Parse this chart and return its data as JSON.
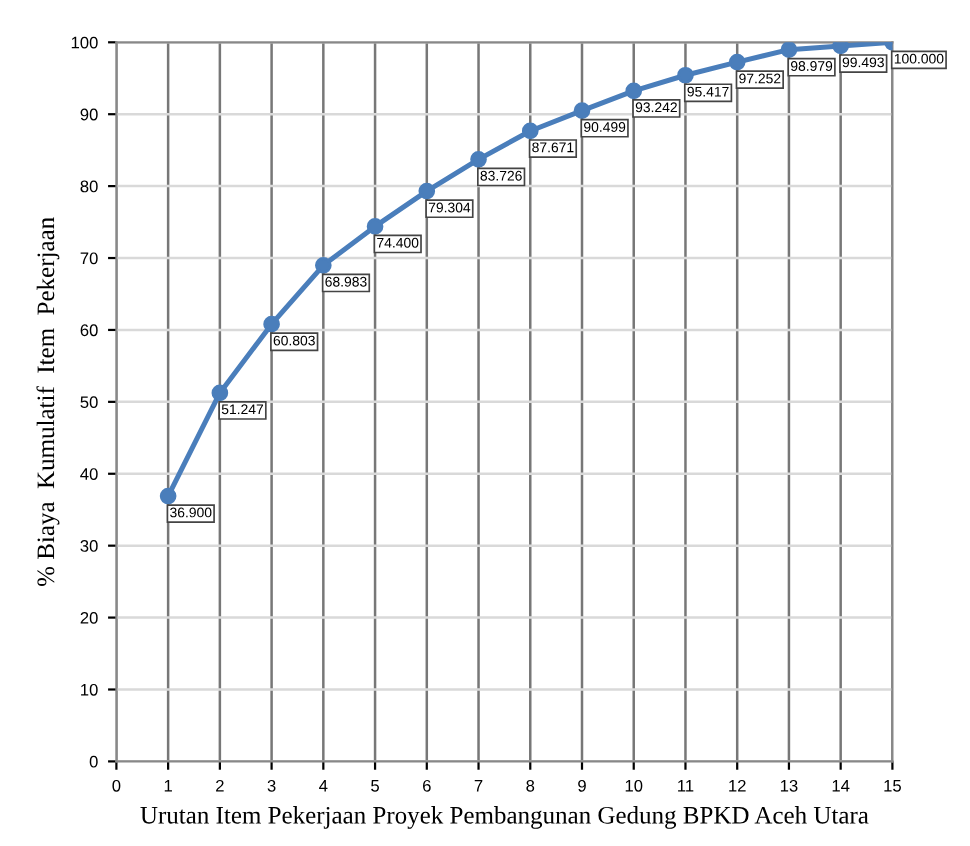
{
  "chart_data": {
    "type": "line",
    "xlabel": "Urutan Item Pekerjaan Proyek Pembangunan Gedung BPKD Aceh Utara",
    "ylabel": "% Biaya  Kumulatif  Item  Pekerjaan",
    "x": [
      1,
      2,
      3,
      4,
      5,
      6,
      7,
      8,
      9,
      10,
      11,
      12,
      13,
      14,
      15
    ],
    "series": [
      {
        "color": "#4a7ebb",
        "values": [
          36.9,
          51.247,
          60.803,
          68.983,
          74.4,
          79.304,
          83.726,
          87.671,
          90.499,
          93.242,
          95.417,
          97.252,
          98.979,
          99.493,
          100.0
        ],
        "value_labels": [
          "36.900",
          "51.247",
          "60.803",
          "68.983",
          "74.400",
          "79.304",
          "83.726",
          "87.671",
          "90.499",
          "93.242",
          "95.417",
          "97.252",
          "98.979",
          "99.493",
          "100.000"
        ]
      }
    ],
    "xlim": [
      0,
      15
    ],
    "xticks": [
      0,
      1,
      2,
      3,
      4,
      5,
      6,
      7,
      8,
      9,
      10,
      11,
      12,
      13,
      14,
      15
    ],
    "ylim": [
      0,
      100
    ],
    "yticks": [
      0,
      10,
      20,
      30,
      40,
      50,
      60,
      70,
      80,
      90,
      100
    ],
    "grid": true,
    "marker": "circle",
    "line_style": "solid"
  }
}
